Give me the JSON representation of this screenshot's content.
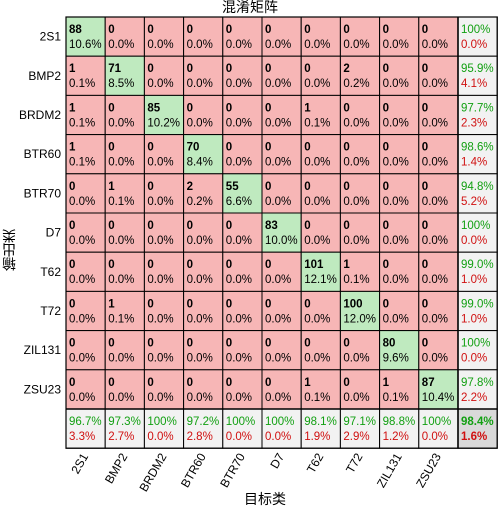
{
  "chart_data": {
    "type": "heatmap",
    "title": "混淆矩阵",
    "xlabel": "目标类",
    "ylabel": "输出类",
    "classes": [
      "2S1",
      "BMP2",
      "BRDM2",
      "BTR60",
      "BTR70",
      "D7",
      "T62",
      "T72",
      "ZIL131",
      "ZSU23"
    ],
    "cells": [
      [
        [
          "88",
          "10.6%"
        ],
        [
          "0",
          "0.0%"
        ],
        [
          "0",
          "0.0%"
        ],
        [
          "0",
          "0.0%"
        ],
        [
          "0",
          "0.0%"
        ],
        [
          "0",
          "0.0%"
        ],
        [
          "0",
          "0.0%"
        ],
        [
          "0",
          "0.0%"
        ],
        [
          "0",
          "0.0%"
        ],
        [
          "0",
          "0.0%"
        ]
      ],
      [
        [
          "1",
          "0.1%"
        ],
        [
          "71",
          "8.5%"
        ],
        [
          "0",
          "0.0%"
        ],
        [
          "0",
          "0.0%"
        ],
        [
          "0",
          "0.0%"
        ],
        [
          "0",
          "0.0%"
        ],
        [
          "0",
          "0.0%"
        ],
        [
          "2",
          "0.2%"
        ],
        [
          "0",
          "0.0%"
        ],
        [
          "0",
          "0.0%"
        ]
      ],
      [
        [
          "1",
          "0.1%"
        ],
        [
          "0",
          "0.0%"
        ],
        [
          "85",
          "10.2%"
        ],
        [
          "0",
          "0.0%"
        ],
        [
          "0",
          "0.0%"
        ],
        [
          "0",
          "0.0%"
        ],
        [
          "1",
          "0.1%"
        ],
        [
          "0",
          "0.0%"
        ],
        [
          "0",
          "0.0%"
        ],
        [
          "0",
          "0.0%"
        ]
      ],
      [
        [
          "1",
          "0.1%"
        ],
        [
          "0",
          "0.0%"
        ],
        [
          "0",
          "0.0%"
        ],
        [
          "70",
          "8.4%"
        ],
        [
          "0",
          "0.0%"
        ],
        [
          "0",
          "0.0%"
        ],
        [
          "0",
          "0.0%"
        ],
        [
          "0",
          "0.0%"
        ],
        [
          "0",
          "0.0%"
        ],
        [
          "0",
          "0.0%"
        ]
      ],
      [
        [
          "0",
          "0.0%"
        ],
        [
          "1",
          "0.1%"
        ],
        [
          "0",
          "0.0%"
        ],
        [
          "2",
          "0.2%"
        ],
        [
          "55",
          "6.6%"
        ],
        [
          "0",
          "0.0%"
        ],
        [
          "0",
          "0.0%"
        ],
        [
          "0",
          "0.0%"
        ],
        [
          "0",
          "0.0%"
        ],
        [
          "0",
          "0.0%"
        ]
      ],
      [
        [
          "0",
          "0.0%"
        ],
        [
          "0",
          "0.0%"
        ],
        [
          "0",
          "0.0%"
        ],
        [
          "0",
          "0.0%"
        ],
        [
          "0",
          "0.0%"
        ],
        [
          "83",
          "10.0%"
        ],
        [
          "0",
          "0.0%"
        ],
        [
          "0",
          "0.0%"
        ],
        [
          "0",
          "0.0%"
        ],
        [
          "0",
          "0.0%"
        ]
      ],
      [
        [
          "0",
          "0.0%"
        ],
        [
          "0",
          "0.0%"
        ],
        [
          "0",
          "0.0%"
        ],
        [
          "0",
          "0.0%"
        ],
        [
          "0",
          "0.0%"
        ],
        [
          "0",
          "0.0%"
        ],
        [
          "101",
          "12.1%"
        ],
        [
          "1",
          "0.1%"
        ],
        [
          "0",
          "0.0%"
        ],
        [
          "0",
          "0.0%"
        ]
      ],
      [
        [
          "0",
          "0.0%"
        ],
        [
          "1",
          "0.1%"
        ],
        [
          "0",
          "0.0%"
        ],
        [
          "0",
          "0.0%"
        ],
        [
          "0",
          "0.0%"
        ],
        [
          "0",
          "0.0%"
        ],
        [
          "0",
          "0.0%"
        ],
        [
          "100",
          "12.0%"
        ],
        [
          "0",
          "0.0%"
        ],
        [
          "0",
          "0.0%"
        ]
      ],
      [
        [
          "0",
          "0.0%"
        ],
        [
          "0",
          "0.0%"
        ],
        [
          "0",
          "0.0%"
        ],
        [
          "0",
          "0.0%"
        ],
        [
          "0",
          "0.0%"
        ],
        [
          "0",
          "0.0%"
        ],
        [
          "0",
          "0.0%"
        ],
        [
          "0",
          "0.0%"
        ],
        [
          "80",
          "9.6%"
        ],
        [
          "0",
          "0.0%"
        ]
      ],
      [
        [
          "0",
          "0.0%"
        ],
        [
          "0",
          "0.0%"
        ],
        [
          "0",
          "0.0%"
        ],
        [
          "0",
          "0.0%"
        ],
        [
          "0",
          "0.0%"
        ],
        [
          "0",
          "0.0%"
        ],
        [
          "1",
          "0.1%"
        ],
        [
          "0",
          "0.0%"
        ],
        [
          "1",
          "0.1%"
        ],
        [
          "87",
          "10.4%"
        ]
      ]
    ],
    "row_summary": [
      [
        "100%",
        "0.0%"
      ],
      [
        "95.9%",
        "4.1%"
      ],
      [
        "97.7%",
        "2.3%"
      ],
      [
        "98.6%",
        "1.4%"
      ],
      [
        "94.8%",
        "5.2%"
      ],
      [
        "100%",
        "0.0%"
      ],
      [
        "99.0%",
        "1.0%"
      ],
      [
        "99.0%",
        "1.0%"
      ],
      [
        "100%",
        "0.0%"
      ],
      [
        "97.8%",
        "2.2%"
      ]
    ],
    "col_summary": [
      [
        "96.7%",
        "3.3%"
      ],
      [
        "97.3%",
        "2.7%"
      ],
      [
        "100%",
        "0.0%"
      ],
      [
        "97.2%",
        "2.8%"
      ],
      [
        "100%",
        "0.0%"
      ],
      [
        "100%",
        "0.0%"
      ],
      [
        "98.1%",
        "1.9%"
      ],
      [
        "97.1%",
        "2.9%"
      ],
      [
        "98.8%",
        "1.2%"
      ],
      [
        "100%",
        "0.0%"
      ]
    ],
    "overall": [
      "98.4%",
      "1.6%"
    ],
    "colors": {
      "diagonal": "#bfeabf",
      "off_diagonal": "#f7b6b6",
      "summary": "#f2f2f2",
      "overall": "#d9d9d9",
      "accuracy_text": "#12a012",
      "error_text": "#d01010",
      "grid": "#000000"
    }
  }
}
